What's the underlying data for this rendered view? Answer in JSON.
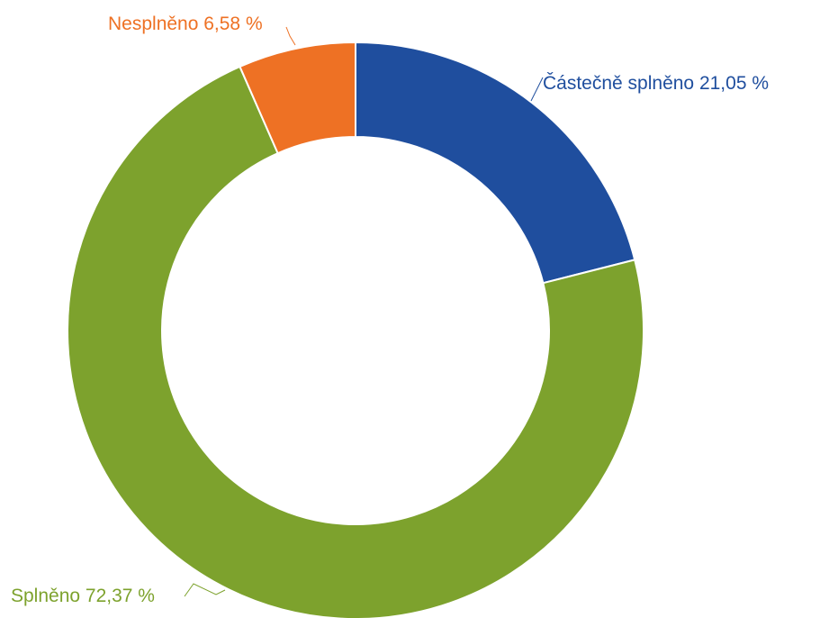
{
  "chart_data": {
    "type": "pie",
    "variant": "donut",
    "title": "",
    "slices": [
      {
        "name": "Částečně splněno",
        "value": 21.05,
        "label": "Částečně splněno 21,05 %",
        "color": "#1f4e9e"
      },
      {
        "name": "Splněno",
        "value": 72.37,
        "label": "Splněno 72,37 %",
        "color": "#7da22d"
      },
      {
        "name": "Nesplněno",
        "value": 6.58,
        "label": "Nesplněno 6,58 %",
        "color": "#ee7124"
      }
    ]
  }
}
